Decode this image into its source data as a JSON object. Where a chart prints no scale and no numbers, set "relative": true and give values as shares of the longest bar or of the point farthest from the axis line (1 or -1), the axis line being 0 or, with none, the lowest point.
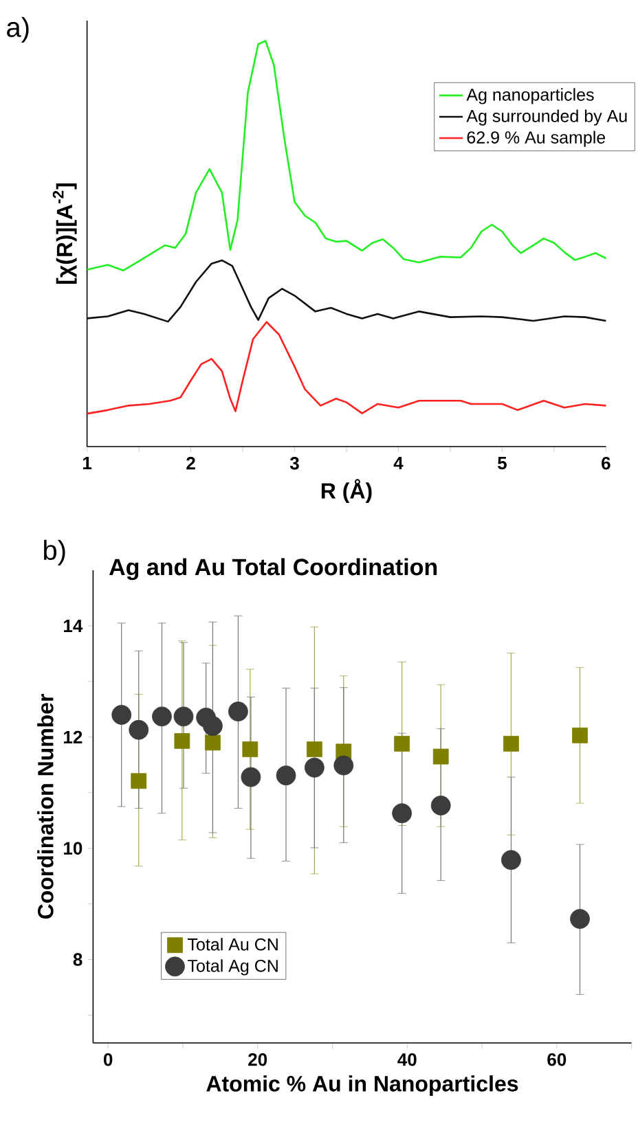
{
  "chart_data": [
    {
      "type": "line",
      "relative": true,
      "xlabel": "R (Å)",
      "ylabel": "[χ(R)][A$^{-2}$]",
      "xlim": [
        1,
        6
      ],
      "xticks": [
        1,
        {
          "value": 1.5,
          "label": null
        },
        2,
        {
          "value": 2.5,
          "label": null
        },
        3,
        {
          "value": 3.5,
          "label": null
        },
        4,
        {
          "value": 4.5,
          "label": null
        },
        5,
        {
          "value": 5.5,
          "label": null
        },
        6
      ],
      "tick_labels": "x",
      "legend": "top right",
      "marker": "none",
      "annotations": [
        "a)"
      ],
      "series": [
        {
          "name": "Ag nanoparticles",
          "color": "#22ee22",
          "x": [
            1.0,
            1.2,
            1.35,
            1.5,
            1.75,
            1.85,
            1.95,
            2.05,
            2.18,
            2.3,
            2.38,
            2.45,
            2.55,
            2.65,
            2.72,
            2.8,
            2.9,
            3.0,
            3.1,
            3.2,
            3.3,
            3.4,
            3.5,
            3.65,
            3.75,
            3.85,
            3.95,
            4.05,
            4.2,
            4.4,
            4.6,
            4.7,
            4.8,
            4.9,
            5.0,
            5.1,
            5.18,
            5.3,
            5.4,
            5.5,
            5.6,
            5.7,
            5.8,
            5.9,
            6.0
          ],
          "values": [
            0.436,
            0.448,
            0.434,
            0.457,
            0.496,
            0.49,
            0.524,
            0.626,
            0.684,
            0.626,
            0.485,
            0.558,
            0.874,
            0.992,
            1.0,
            0.941,
            0.761,
            0.603,
            0.569,
            0.552,
            0.513,
            0.505,
            0.507,
            0.483,
            0.502,
            0.511,
            0.49,
            0.462,
            0.454,
            0.468,
            0.466,
            0.49,
            0.53,
            0.547,
            0.53,
            0.496,
            0.477,
            0.496,
            0.513,
            0.502,
            0.479,
            0.46,
            0.468,
            0.477,
            0.464
          ]
        },
        {
          "name": "Ag surrounded by Au",
          "color": "#111111",
          "x": [
            1.0,
            1.2,
            1.4,
            1.55,
            1.78,
            1.9,
            2.05,
            2.2,
            2.3,
            2.4,
            2.5,
            2.58,
            2.65,
            2.75,
            2.88,
            3.0,
            3.2,
            3.35,
            3.5,
            3.65,
            3.8,
            3.95,
            4.2,
            4.5,
            4.8,
            5.0,
            5.3,
            5.6,
            5.8,
            6.0
          ],
          "values": [
            0.316,
            0.321,
            0.336,
            0.327,
            0.308,
            0.344,
            0.406,
            0.451,
            0.459,
            0.445,
            0.389,
            0.344,
            0.312,
            0.366,
            0.389,
            0.372,
            0.333,
            0.342,
            0.327,
            0.316,
            0.327,
            0.316,
            0.333,
            0.319,
            0.321,
            0.319,
            0.31,
            0.321,
            0.319,
            0.31
          ]
        },
        {
          "name": "62.9 % Au sample",
          "color": "#ff2020",
          "x": [
            1.0,
            1.2,
            1.4,
            1.6,
            1.8,
            1.9,
            2.0,
            2.1,
            2.2,
            2.3,
            2.38,
            2.43,
            2.5,
            2.6,
            2.73,
            2.85,
            3.0,
            3.1,
            3.25,
            3.4,
            3.5,
            3.65,
            3.8,
            4.0,
            4.2,
            4.6,
            4.7,
            5.0,
            5.15,
            5.4,
            5.6,
            5.8,
            6.0
          ],
          "values": [
            0.081,
            0.09,
            0.101,
            0.105,
            0.113,
            0.121,
            0.163,
            0.203,
            0.216,
            0.186,
            0.118,
            0.087,
            0.163,
            0.265,
            0.307,
            0.276,
            0.197,
            0.141,
            0.101,
            0.118,
            0.109,
            0.082,
            0.105,
            0.096,
            0.113,
            0.113,
            0.105,
            0.105,
            0.09,
            0.113,
            0.096,
            0.105,
            0.101
          ]
        }
      ]
    },
    {
      "type": "scatter",
      "title": "Ag and Au Total Coordination",
      "xlabel": "Atomic % Au in Nanoparticles",
      "ylabel": "Coordination Number",
      "xlim": [
        -2,
        70
      ],
      "ylim": [
        6.5,
        15
      ],
      "xticks": [
        0,
        {
          "value": 10,
          "label": null
        },
        20,
        {
          "value": 30,
          "label": null
        },
        40,
        {
          "value": 50,
          "label": null
        },
        60,
        {
          "value": 70,
          "label": null
        }
      ],
      "yticks": [
        {
          "value": 7,
          "label": null
        },
        8,
        {
          "value": 9,
          "label": null
        },
        10,
        {
          "value": 11,
          "label": null
        },
        12,
        {
          "value": 13,
          "label": null
        },
        14
      ],
      "legend": "bottom left",
      "annotations": [
        "b)"
      ],
      "series": [
        {
          "name": "Total Au CN",
          "color": "#808000",
          "marker": "square",
          "x": [
            4.1,
            9.9,
            14.0,
            19.0,
            27.6,
            31.5,
            39.3,
            44.5,
            53.9,
            63.1
          ],
          "values": [
            11.21,
            11.93,
            11.9,
            11.78,
            11.78,
            11.74,
            11.88,
            11.65,
            11.88,
            12.03
          ],
          "errors": [
            [
              9.68,
              12.77
            ],
            [
              10.15,
              13.73
            ],
            [
              10.19,
              13.65
            ],
            [
              10.34,
              13.22
            ],
            [
              9.54,
              13.98
            ],
            [
              10.39,
              13.1
            ],
            [
              10.41,
              13.35
            ],
            [
              10.39,
              12.94
            ],
            [
              10.24,
              13.51
            ],
            [
              10.81,
              13.25
            ]
          ]
        },
        {
          "name": "Total Ag CN",
          "color": "#3c3c3c",
          "marker": "circle",
          "x": [
            1.8,
            4.1,
            7.2,
            10.1,
            13.1,
            14.0,
            17.4,
            19.1,
            23.8,
            27.6,
            31.5,
            39.3,
            44.5,
            53.9,
            63.1
          ],
          "values": [
            12.4,
            12.13,
            12.37,
            12.37,
            12.35,
            12.2,
            12.46,
            11.28,
            11.31,
            11.45,
            11.49,
            10.63,
            10.77,
            9.79,
            8.73
          ],
          "errors": [
            [
              10.75,
              14.05
            ],
            [
              10.72,
              13.55
            ],
            [
              10.63,
              14.05
            ],
            [
              11.08,
              13.7
            ],
            [
              11.35,
              13.33
            ],
            [
              10.28,
              14.07
            ],
            [
              10.72,
              14.18
            ],
            [
              9.82,
              12.72
            ],
            [
              9.77,
              12.88
            ],
            [
              10.01,
              12.88
            ],
            [
              10.1,
              12.89
            ],
            [
              9.19,
              12.07
            ],
            [
              9.42,
              12.15
            ],
            [
              8.3,
              11.28
            ],
            [
              7.37,
              10.07
            ]
          ]
        }
      ]
    }
  ]
}
